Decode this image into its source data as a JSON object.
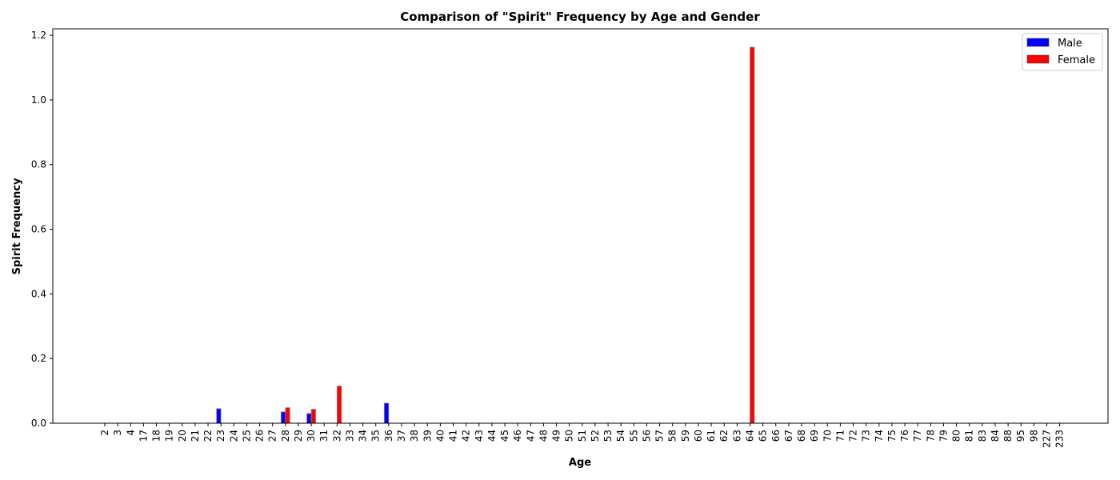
{
  "chart_data": {
    "type": "bar",
    "title": "Comparison of \"Spirit\" Frequency by Age and Gender",
    "xlabel": "Age",
    "ylabel": "Spirit Frequency",
    "ylim": [
      0,
      1.22
    ],
    "yticks": [
      0.0,
      0.2,
      0.4,
      0.6,
      0.8,
      1.0,
      1.2
    ],
    "ytick_labels": [
      "0.0",
      "0.2",
      "0.4",
      "0.6",
      "0.8",
      "1.0",
      "1.2"
    ],
    "grid": false,
    "legend_position": "top-right",
    "categories": [
      "2",
      "3",
      "4",
      "17",
      "18",
      "19",
      "20",
      "21",
      "22",
      "23",
      "24",
      "25",
      "26",
      "27",
      "28",
      "29",
      "30",
      "31",
      "32",
      "33",
      "34",
      "35",
      "36",
      "37",
      "38",
      "39",
      "40",
      "41",
      "42",
      "43",
      "44",
      "45",
      "46",
      "47",
      "48",
      "49",
      "50",
      "51",
      "52",
      "53",
      "54",
      "55",
      "56",
      "57",
      "58",
      "59",
      "60",
      "61",
      "62",
      "63",
      "64",
      "65",
      "66",
      "67",
      "68",
      "69",
      "70",
      "71",
      "72",
      "73",
      "74",
      "75",
      "76",
      "77",
      "78",
      "79",
      "80",
      "81",
      "83",
      "84",
      "88",
      "95",
      "98",
      "227",
      "233"
    ],
    "series": [
      {
        "name": "Male",
        "color": "#0000ff",
        "values": [
          0,
          0,
          0,
          0,
          0,
          0,
          0,
          0,
          0,
          0.045,
          0,
          0,
          0,
          0,
          0.035,
          0,
          0.03,
          0,
          0,
          0,
          0,
          0,
          0.062,
          0,
          0,
          0,
          0,
          0,
          0,
          0,
          0,
          0,
          0,
          0,
          0,
          0,
          0,
          0,
          0,
          0,
          0,
          0,
          0,
          0,
          0,
          0,
          0,
          0,
          0,
          0,
          0,
          0,
          0,
          0,
          0,
          0,
          0,
          0,
          0,
          0,
          0,
          0,
          0,
          0,
          0,
          0,
          0,
          0,
          0,
          0,
          0,
          0,
          0,
          0,
          0
        ]
      },
      {
        "name": "Female",
        "color": "#ff0000",
        "values": [
          0,
          0,
          0,
          0,
          0,
          0,
          0,
          0,
          0,
          0,
          0,
          0,
          0,
          0,
          0.048,
          0,
          0.043,
          0,
          0.115,
          0,
          0,
          0,
          0,
          0,
          0,
          0,
          0,
          0,
          0,
          0,
          0,
          0,
          0,
          0,
          0,
          0,
          0,
          0,
          0,
          0,
          0,
          0,
          0,
          0,
          0,
          0,
          0,
          0,
          0,
          0,
          1.163,
          0,
          0,
          0,
          0,
          0,
          0,
          0,
          0,
          0,
          0,
          0,
          0,
          0,
          0,
          0,
          0,
          0,
          0,
          0,
          0,
          0,
          0,
          0,
          0
        ]
      }
    ]
  }
}
